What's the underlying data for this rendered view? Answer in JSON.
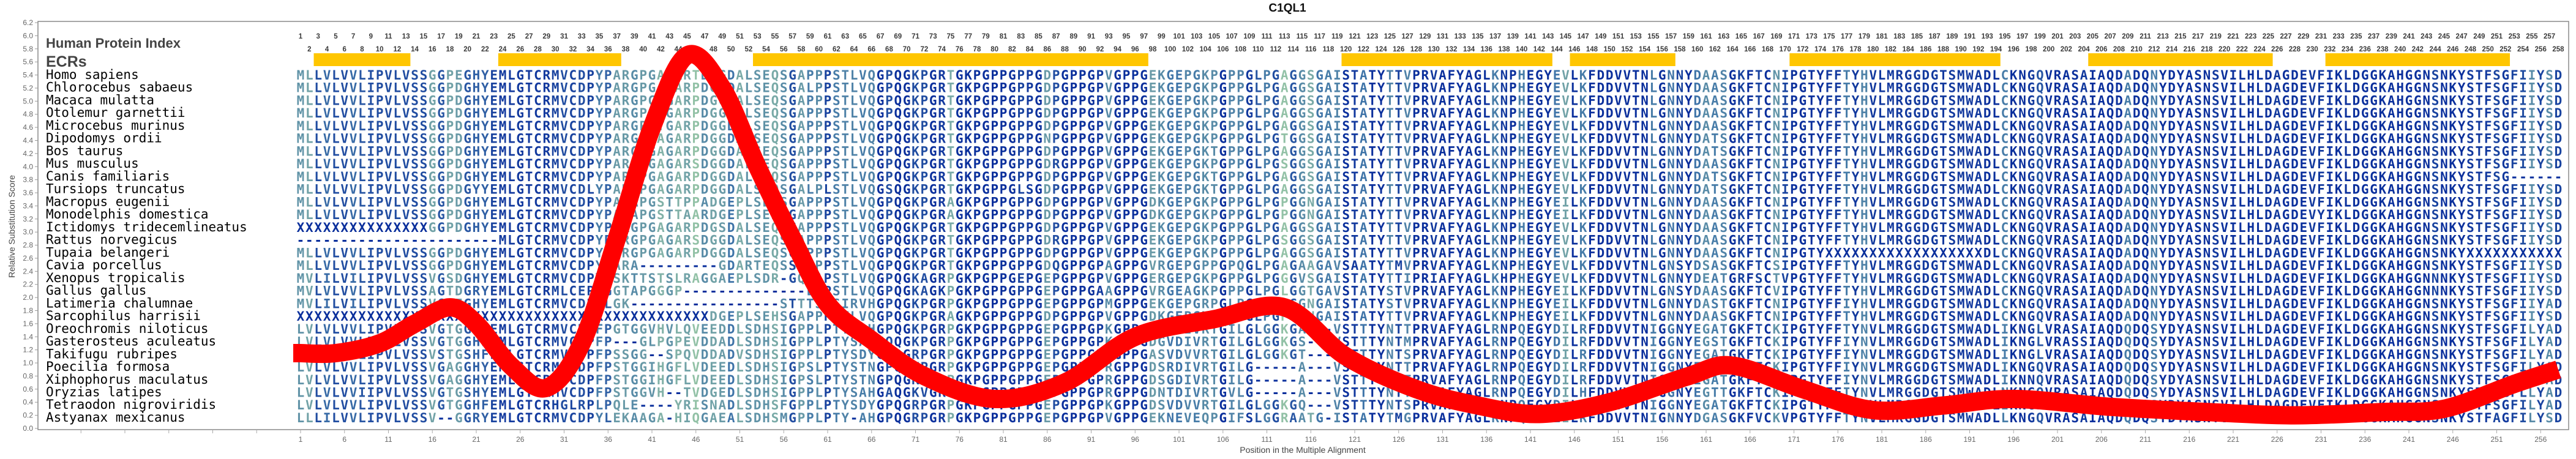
{
  "chart_data": {
    "type": "line",
    "title": "C1QL1",
    "xlabel": "Position in the Multiple Alignment",
    "ylabel": "Relative Substitution Score",
    "xlim": [
      1,
      258
    ],
    "ylim": [
      0,
      6.2
    ],
    "y_ticks": [
      "0.0",
      "0.2",
      "0.4",
      "0.6",
      "0.8",
      "1.0",
      "1.2",
      "1.4",
      "1.6",
      "1.8",
      "2.0",
      "2.2",
      "2.4",
      "2.6",
      "2.8",
      "3.0",
      "3.2",
      "3.4",
      "3.6",
      "3.8",
      "4.0",
      "4.2",
      "4.4",
      "4.6",
      "4.8",
      "5.0",
      "5.2",
      "5.4",
      "5.6",
      "5.8",
      "6.0",
      "6.2"
    ],
    "x_tick_step": 5,
    "grid": false,
    "series": [
      {
        "name": "Relative Substitution Score",
        "color": "#ff0000",
        "points": [
          [
            1,
            1.15
          ],
          [
            5,
            1.15
          ],
          [
            10,
            1.3
          ],
          [
            14,
            1.6
          ],
          [
            18,
            1.85
          ],
          [
            21,
            1.6
          ],
          [
            25,
            0.95
          ],
          [
            29,
            0.62
          ],
          [
            33,
            1.3
          ],
          [
            37,
            2.9
          ],
          [
            41,
            4.6
          ],
          [
            45,
            5.7
          ],
          [
            49,
            5.2
          ],
          [
            53,
            4.0
          ],
          [
            57,
            2.9
          ],
          [
            61,
            1.9
          ],
          [
            66,
            1.35
          ],
          [
            72,
            0.8
          ],
          [
            80,
            0.45
          ],
          [
            88,
            0.7
          ],
          [
            96,
            1.4
          ],
          [
            105,
            1.67
          ],
          [
            113,
            1.85
          ],
          [
            120,
            1.1
          ],
          [
            128,
            0.6
          ],
          [
            135,
            0.35
          ],
          [
            142,
            0.22
          ],
          [
            150,
            0.4
          ],
          [
            159,
            0.8
          ],
          [
            164,
            0.96
          ],
          [
            172,
            0.6
          ],
          [
            180,
            0.28
          ],
          [
            188,
            0.35
          ],
          [
            196,
            0.45
          ],
          [
            207,
            0.33
          ],
          [
            218,
            0.25
          ],
          [
            228,
            0.2
          ],
          [
            238,
            0.25
          ],
          [
            245,
            0.3
          ],
          [
            253,
            0.68
          ],
          [
            258,
            0.9
          ]
        ]
      }
    ],
    "header": {
      "index_label": "Human Protein Index",
      "ecr_label": "ECRs",
      "index_count": 258
    },
    "ecrs": [
      [
        3,
        13
      ],
      [
        24,
        37
      ],
      [
        53,
        97
      ],
      [
        120,
        143
      ],
      [
        146,
        157
      ],
      [
        171,
        194
      ],
      [
        205,
        225
      ],
      [
        232,
        252
      ]
    ],
    "colors": {
      "ecr": "#ffc600",
      "conserved": "#0a2f9c",
      "mid": "#3f74a8",
      "variable": "#9ccaa6",
      "axis": "#8a8a8a"
    },
    "alignment": [
      {
        "species": "Homo sapiens",
        "sequence": [
          "MLLVLVVLIPVLVSSGGPEGHYEMLGTCRMVCDPYPARGPGAGARTDGGDALSEQSGAPPPSTLV",
          "QGPQGKPGRTGKPGPPGPPGDPGPPGPVGPPGEKGEPGKPGPPGLPGAGGSGAISTATYTTVPRVA",
          "FYAGLKNPHEGYEVLKFDDVVTNLGNNYDAASGKFTCNIPGTYFFTYHVLMRGGDGTSMWADLC",
          "KNGQVRASAIAQDADQNYDYASNSVILHLDAGDEVFIKLDGGKAHGGNSNKYSTFSGFIIYSD"
        ]
      },
      {
        "species": "Chlorocebus sabaeus",
        "sequence": [
          "MLLVLVVLIPVLVSSGGPDGHYEMLGTCRMVCDPYPARGPGAGARPDGGDALSEQSGALPPSTLV",
          "QGPQGKPGRTGKPGPPGPPGDPGPPGPVGPPGEKGEPGKPGPPGLPGAGGSGAISTATYTTVPRVA",
          "FYAGLKNPHEGYEVLKFDDVVTNLGNNYDAASGKFTCNIPGTYFFTYHVLMRGGDGTSMWADLC",
          "KNGQVRASAIAQDADQNYDYASNSVILHLDAGDEVFIKLDGGKAHGGNSNKYSTFSGFIIYSD"
        ]
      },
      {
        "species": "Macaca mulatta",
        "sequence": [
          "MLLVLVVLIPVLVSSGGPDGHYEMLGTCRMVCDPYPARGPGAGARPDGGDALSEQSGAPPPSTLV",
          "QGPQGKPGRTGKPGPPGPPGDPGPPGPVGPPGEKGEPGKPGPPGLPGAGGSGAISTATYTTVPRVA",
          "FYAGLKNPHEGYEVLKFDDVVTNLGNNYDAASGKFTCNIPGTYFFTYHVLMRGGDGTSMWADLC",
          "KNGQVRASAIAQDADQNYDYASNSVILHLDAGDEVFIKLDGGKAHGGNSNKYSTFSGFIIYSD"
        ]
      },
      {
        "species": "Otolemur garnettii",
        "sequence": [
          "MLLVLVVLIPVLVSSGGPDGHYEMLGTCRMVCDPYPARGPGAGARPDGGDALSEQSGAPPPSTLV",
          "QGPQGKPGRTGKPGPPGPPGDPGPPGPVGPPGEKGEPGKPGPPGLPGAGGSGAISTATYTTVPRVA",
          "FYAGLKNPHEGYEVLKFDDVVTNLGNNYDAASGKFTCNIPGTYFFTYHVLMRGGDGTSMWADLC",
          "KNGQVRASAIAQDADQNYDYASNSVILHLDAGDEVFIKLDGGKAHGGNSNKYSTFSGFIIYSD"
        ]
      },
      {
        "species": "Microcebus murinus",
        "sequence": [
          "MLLVLVVLIPVLVSSGGPDGHYEMLGTCRMVCDPYPARGPGTGARPDGGDALSEQSGAPPPSTLV",
          "QGPQGKPGRTGKPGPPGPPGDPGPPGPVGPPGEKGEPGKPGPPGLPGAGGSGAISTATYTTVPRVA",
          "FYAGLKNPHEGYEVLKFDDVVTNLGNNYDAASGKFTCNIPGTYFFTYHVLMRGGDGTSMWADLC",
          "KNGQVRASAIAQDADQNYDYASNSVILHLDAGDEVFIKLDGGKAHGGNSNKYSTFSGFIIYSD"
        ]
      },
      {
        "species": "Dipodomys ordii",
        "sequence": [
          "MLLVLVVLIPVLVSSGGPDGHYEMLGTCRMVCDPYPARGPGAGARPDGGDALSEQSGAPPPSTLV",
          "QGPQGKPGRTGKPGPPGPPGNPGPPGPVGPPGEKGEPGKPGPPGLPGTGGSGAISTATYTTVPRVA",
          "FYAGLKNPHEGYEVLKFDDVVTNLGNNYDATSGKFTCNIPGTYFFTYHVLMRGGDGTSMWADLC",
          "KNGQVRASAIAQDADQNYDYASNSVILHLDAGDEVFIKLDGGKAHGGNSNKYSTFSGFIIYSD"
        ]
      },
      {
        "species": "Bos taurus",
        "sequence": [
          "MLLVLVVLIPVLVSSGGPDGHYEMLGTCRMVCDPYPARGPGAGARPDGGDALSEQSGAPPPSTLV",
          "QGPQGKPGRTGKPGPPGPPGDPGPPGPVGPPGEKGEPGKTGPPGLPGAGGSGAISTATYTTVPRVA",
          "FYAGLKNPHEGYEVLKFDDVVTNLGNNYDATSGKFTCNIPGTYFFTYHVLMRGGDGTSMWADLC",
          "KNGQVRASAIAQDADQNYDYASNSVILHLDAGDEVFIKLDGGKAHGGNSNKYSTFSGFIIYSD"
        ]
      },
      {
        "species": "Mus musculus",
        "sequence": [
          "MLLVLVVLIPVLVSSGGPDGHYEMLGTCRMVCDPYPARGPGAGARSDGGDALSEQSGAPPPSTLV",
          "QGPQGKPGRTGKPGPPGPPGDRGPPGPVGPPGEKGEPGKPGPPGLPGSGGSGAISTATYTTVPRVA",
          "FYAGLKNPHEGYEVLKFDDVVTNLGNNYDAASGKFTCNIPGTYFFTYHVLMRGGDGTSMWADLC",
          "KNGQVRASAIAQDADQNYDYASNSVILHLDAGDEVFIKLDGGKAHGGNSNKYSTFSGFIIYSD"
        ]
      },
      {
        "species": "Canis familiaris",
        "sequence": [
          "MLLVLVVLIPVLVSSGGPDGHYEMLGTCRMVCDPYPARGPGAGARPDGGDALSEQSGAPPPSTLV",
          "QGPQGKPGRTGKPGPPGPPGDPGPPGPVGPPGEKGEPGKTGPPGLPGAGGSGAISTATYTTVPRVA",
          "FYAGLKNPHEGYEVLKFDDVVTNLGNNYDATSGKFTCNIPGTYFFTYHVLMRGGDGTSMWADLC",
          "KNGQVRASAIAQDADQNYDYASNSVILHLDAGDEVFIKLDGGKAHGGNSNKYSTFSG------"
        ]
      },
      {
        "species": "Tursiops truncatus",
        "sequence": [
          "MLLVLVVLIPVLVSSGGPDGYYEMLGTCRMVCDLYPARGPGAGARPDGGDALSEQSGALPLSTLV",
          "QGSQGKPGRTGKPGPPGLSGDPGPPGPVGPPGEKGEPGKTGPPGLPGAGGSGAISTATYTTVPRVA",
          "FYAGLKNPHEGYEVLKFDDVVTNLGNNYDATSGKFTCNIPGTYFFTYHVLMRGGDGTSMWADLC",
          "KNGQVRASAIAQDADQNYDYASNSVILHLDAGDEVFIKLDGGKAHGGNSNKYSTFSGFIIYSD"
        ]
      },
      {
        "species": "Macropus eugenii",
        "sequence": [
          "MLLVLVVLIPVLVSSGGPDGHYEMLGTCRMVCDPYPARAPGSTTPPADGEPLSEHSGAPPPSTLV",
          "QGPQGKPGRAGKPGPPGPPGDPGPPGPVGPPGDKGEPGKPGPPGLPGPGGNGAISTATYTTVPRVA",
          "FYAGLKNPHEGYEILKFDDVVTNLGNNYDAASGKFTCNIPGTYFFTYHVLMRGGDGTSMWADLC",
          "KNGQVRASAIAQDADQNYDYASNSVILHLDAGDEVFIKLDGGKAHGGNSNKYSTFSGFIIYSD"
        ]
      },
      {
        "species": "Monodelphis domestica",
        "sequence": [
          "MLLVLVVLIPVLVSSGGPDGHYEMLGTCRMVCDPYPARAPGSTTAARDGEPLSEHSGAPPPSTLV",
          "QGPQGKPGRAGKPGPPGPPGDPGPPGPVGPPGDKGEPGKPGPPGLPGPGGNGAISTATYTTVPRVA",
          "FYAGLKNPHEGYEILKFDDVVTNLGNNYDAASGKFTCNIPGTYFFTYHVLMRGGDGTSMWADLC",
          "KNGQVRASAIAQDADQNYDYASNSVILHLDAGDEVYIKLDGGKAHGGNSNKYSTFSGFIIYSD"
        ]
      },
      {
        "species": "Ictidomys tridecemlineatus",
        "sequence": [
          "XXXXXXXXXXXXXXXGGPDGHYEMLGTCRMVCDPYPARGPGAGARPDGSDALSEQSGAPPPSTLV",
          "QGPQGKPGRTGKPGPPGPPGDPGPPGPVGPPGEKGEPGKPGPPGLPGAGGSGAISTATYTTVPRVA",
          "FYAGLKNPHEGYEVLKFDDVVTNLGNNYDAASGKFTCNIPGTYFFTYHVLMRGGDGTSMWADLC",
          "KNGQVRASAIAQDADQNYDYASNSVILHLDAGDEVFIKLDGGKAHGGNSNKYSTFSGFIIYSD"
        ]
      },
      {
        "species": "Rattus norvegicus",
        "sequence": [
          "-----------------------MLGTCRMVCDPYPARGPGAGARSDGGDALSEQSGAPPPSTLV",
          "QGPQGKPGRTGKPGPPGPPGDRGPPGPVGPPGEKGEPGKPGPPGLPGSGGSGAISTATYTTVPRVA",
          "FYAGLKNPHEGYEVLKFDDVVTNLGNNYDAASGKFTCNIPGTYFFTYHVLMRGGDGTSMWADLC",
          "KNGQVRASAIAQDADQNYDYASNSVILHLDAGDEVFIKLDGGKAHGGNSNKYSTFSGFIIYSD"
        ]
      },
      {
        "species": "Tupaia belangeri",
        "sequence": [
          "MLLVLVVLIPVLVSSGGPDGHYEMLGTCRMVCDPYPARGPGAGARPDGGDALSEQSGAPPPSTLV",
          "QGPQGKPGRTGKPGPPGPPGDPGPPGPVGPPGEKGEPGKPGPPGLPGAGGSGAISTATYTTVPRVA",
          "FYAGLKNPHEGYEVLKFDDVVTNLGNNYDAASGKFTCNIPGTYXXXXXXXXXXXXXXXXXXDLC",
          "KNGQVRASAIAQDADQNYDYASNSVILHLDAGDEVFIKLDGGKAHGGNSNKYXXXXXXXXXXX"
        ]
      },
      {
        "species": "Cavia porcellus",
        "sequence": [
          "MLLVLVVLIPVLVSSGGPDGHYEMLGTCRMVCDPYPARA---------GDARTEQSS--PPSTLV",
          "QGPQGKPGRTGKPGPPGPPGDQGPPGPAGPPGVRGEPGPPGPQGLPGAGAAGAVSAATYTMVPRVA",
          "FYAGLKNPHEGYEVLKFDDVVTNLGNSYDSASGKFTCSIPGTYFFTYHVLMRGGDGTSMWADLC",
          "KNGQVRASAIAQDADQNYDYASNSVILHLDAGDEVFIKLDGGKAHGGNSNKYSTFSGFIIYSD"
        ]
      },
      {
        "species": "Xenopus tropicalis",
        "sequence": [
          "MVLILVILIPVLVSSVGSDGHYEMLGTCRMVCDPYLSKTTSTSLRAGGAEPLSDR-GQSAPSTLV",
          "QGPQGKAGRPGKPGPPGEPGEPGPPGPVGPPGERGEPGKPGPPGLPGGGVSGAISTATYTTIPRIA",
          "FYAGLKHPHEGYEVLKFDDVVTNLGNNYDEATGRFSCTVPGTYFFTYHVLMRGGDGTSMWADLC",
          "KNGQVRASAIAQDADQNYDYASNSVILHLDAGDEVFIKLDGGKAHGGNNNKYSTFSGFIIYSD"
        ]
      },
      {
        "species": "Gallus gallus",
        "sequence": [
          "MVLVLVVLIPVLVSSAGTDGRYEMLGTCRMLCEPYGGTAPGGGP--------------LPPSTLV",
          "QGPQGKAGKPGKPGPPGPPGEPGPPGAAGPPGVRGEAGKPGPPGLPGLGGTGAVSTATYSTVPRVA",
          "FYAGLKNPHEGYEILKFDDVVTNLGNSYDAASGKFTCVIPGTYFFTYHVLMRGGDGTSMWADLC",
          "KNGQVRASAIAQDADQNYDYASNSVILHLDAGDEVFIKLDGGKAHGGNNNKYSTFSGFIIYSD"
        ]
      },
      {
        "species": "Latimeria chalumnae",
        "sequence": [
          "MVLILVILIPVLVSSVGTEGHYEMLGTCRMVCDPYLGK-----------------STTTSASIRV",
          "HGPQGKPGRPGKPGPPGPPGEPGPPGPMGPPGEKGEPGRPGLPGPPGPGGNGAISTATYSTVPRVA",
          "FYAGLKNPHEGYEILKFDDVVTNLGNNYDASTGKFTCNIPGTYFFIYHVLMRGGDGTSMWADLC",
          "KNGQVRASAIAQDADQNYDYASNSVILHLDAGDEVFIKLDGGKAHGGNSNKYSTFSGFIIYAD"
        ]
      },
      {
        "species": "Sarcophilus harrisii",
        "sequence": [
          "XXXXXXXXXXXXXXXXXXXXXXXXXXXXXXXXXXXXXXXXXXXXXXXDGEPLSEHSGAPPPSTLV",
          "QGPQGKPGRAGKPGPPGPPGDPGPPGPVGPPGDKGEPGKPGPPGLPGPGGNGAISTATYTTVPRVA",
          "FYAGLKNPHEGYEILKFDDVVTNLGNNYDAASGKFTCNIPGTYFFTYHVLMRGGDGTSMWADLC",
          "KNGQVRASAIAQDADQNYDYASNSVILHLDAGDEVFIKLDGGKAHGGNSNKYSTFSGFIIYSD"
        ]
      },
      {
        "species": "Oreochromis niloticus",
        "sequence": [
          "LVLVLVVLIPVLVSSVGTGGHYEMLGTCRMVCDPFPGTGGVHVLQVEEDDLSDHSIGPPLPTYSA",
          "HGPQGKPGRPGKPGPPGPPGEPGPPGPKGPPGDAVDIVRTGILGLGGKGA---VSTTTYNTTPRVA",
          "FYAGLRNPQEGYDILRFDDVVTNIGGNYEGATGKFTCKIPGTYFFTYNVLMRGGDGTSMWADLI",
          "KNGLVRASAIAQDQDQSYDYASNSVILHLDAGDEVFIKLDGGKAHGGNSNKYSTFSGFILYAD"
        ]
      },
      {
        "species": "Gasterosteus aculeatus",
        "sequence": [
          "LVLVLVVLIPVLVSSVGTGGHFEMLGTCRMVCDPFP---GLPGPEVDDADLSDHSIGPPLPTYSA",
          "HGQQGKPGRPGKPGPPGPPGEPGPPGPKGPPGDGVDIVRTGILGLGGKGS---VSTTTYNTMPRVA",
          "FYAGLRNPQEGYDILRFDDVVTNIGGNYEGSTGKFTCKIPGTYFFIYNVLMRGGDGTSMWADLI",
          "KNGLVRASSIAQDQDQSYDYASNSVILHLDAGDEVFIKLDGGKAHGGNSNKYSTFSGFILYAD"
        ]
      },
      {
        "species": "Takifugu rubripes",
        "sequence": [
          "LVLVLVILIPVLVSSVSTGSHFEMLGTCRMVCDPFPSSGG--SPQVDDADVSDHSIGPPLPTYSD",
          "YGPQGRPGRPGKPGPPGPPGEPGPPGPKGPPGASVDVVRTGILGLGGKGT---VSTTTYNTSPRVA",
          "FYAGLRNPQEGYDILRFDDVVTNIGGNYEGATGKFTCKIPGTYFFIYNVLMRGGDGTSMWADLI",
          "KNGLVRASAIAQDQDQSYDYASNSVILHLDAGDEVFIKLDGGKAHGGNSNKYSTFSGFILYAD"
        ]
      },
      {
        "species": "Poecilia formosa",
        "sequence": [
          "LVLVLVVLIPVLVSSVGAGGHYEMLGTCRMVCDPFPSTGGIHGFLVDEEDLSDHSIGPSLPTYST",
          "NGPQGKPGRPGKPGPPGPPGEPGPPGPRGPPGDSRDIVRTGILG-----A---VSTTTYNTTPRVA",
          "FYAGLRNPQEGYDILRFDDVVTNIGGNYEGSTGTFTCKIPGTYFFIYNVLMRGGDGTSMWADLI",
          "KNGQVRASAIAQDQDQSYDYASNSVILHLDAGDEVFIKLDGGKAHGGNSNKYSTFSGFILYAD"
        ]
      },
      {
        "species": "Xiphophorus maculatus",
        "sequence": [
          "LVLVLVVLIPVLVSSVGAGGHYEMLGTCRMVCDPFPSTGGIHGFLVDEEDLSDHSIGPSLPTYST",
          "NGPQGKPGRPGKPGPPGPPGEPGPPGPRGPPGDSGDIVRTGILG-----A---VSTTTYNTTPRVA",
          "FYAGLRNPQEGYDILRFDDVVTNIGGNYEGATGKFTCKIPGTYFFIYNVLMRGGDGTSMWADLI",
          "KNNQVRASAIAQDQDQSYDYASNSVILHLDAGDEVFIKLDGGKAHGGNSNKYSTFSGFILYAD"
        ]
      },
      {
        "species": "Oryzias latipes",
        "sequence": [
          "LVLVLVVIIPVLVSSVGTGSHYEMLGTCRMVCDPFPSTGGVH--TVDGEDLSDHSIGPPLPTYSA",
          "HGAQGKVGRPGKPGPPGPPGEPGPPGPRGPPGDNTDIVRTGVLG-----A---VSTTTYNTTPRVA",
          "FYAGLRNPQEGYDILHFDDVVTNIGGNYEGTTGKFTCKIPGTYFFIYNVLMRGGDGTSMWADLN",
          "KNGQVRASAIAQDQDQSYDYASNSVILHLDAGDEVFIKLDGGKAHGGNSNKYSTFSGFLLYAD"
        ]
      },
      {
        "species": "Tetraodon nigroviridis",
        "sequence": [
          "LVLVLVVLIPVLVSSVGTGGHFEMLGTCRHGLRPLPQLE----YRISNADLSDHSFGPPLPTYSD",
          "YGPQGRPGRPGKPGPPGPPGEPGPPGPKGPPGDSVDVVRTGILGLGGKGQ---VSTTTYNTSPRVA",
          "FYAGLRNPQEGYDILRFDDVVTNIGGNYEGATGKFTCKIPGTYFFIYNVLMRGGDGTSMWADLI",
          "KNGLVRASAIAQDQDQSYDYASNSVILHLDAGDEVFIKLDGGKAHGGNSNKYSTFSGFILYAD"
        ]
      },
      {
        "species": "Astyanax mexicanus",
        "sequence": [
          "LLLILVVLIPVLVSSV--GGRYEMLGTCRMVCDPYLEKAAGA-HIQGAEALSDHSMGPPLPTY-A",
          "HGPQGRPGRPGKPGPPGPPGEPGPPGPVGPPGEKNEVEQPGIFSLGGRAATG-ISTATYTMGPRVA",
          "FYAGLRNPQEGYEILRFDDVVTNIGNNYDGASGKFVCKVPGTYFFTYNVLMRGGDGTSMWADLL",
          "KNGQVRASAIAQDQDQSYDYASNTVILHLDPGDEIFIKLDGGKAHGGNSNKYSTFAGFILYSD"
        ]
      }
    ]
  }
}
